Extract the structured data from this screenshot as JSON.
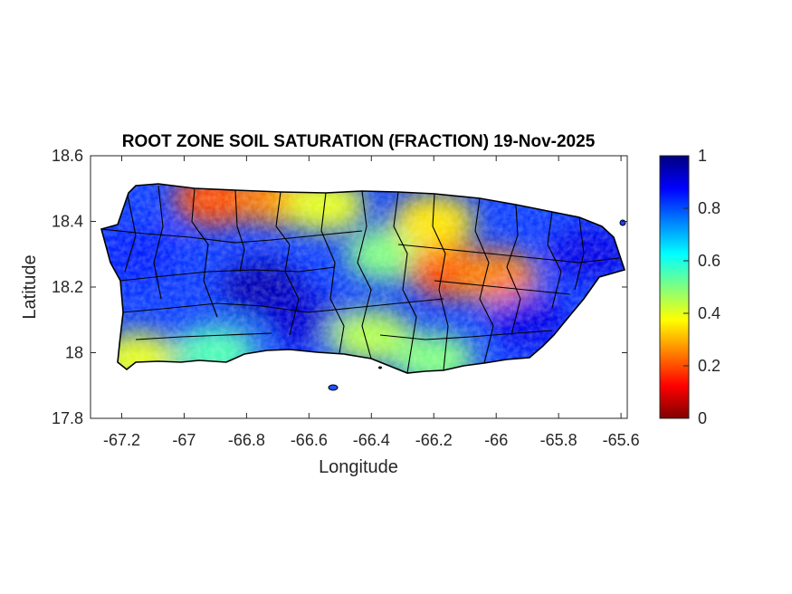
{
  "title": "ROOT ZONE SOIL SATURATION (FRACTION) 19-Nov-2025",
  "xlabel": "Longitude",
  "ylabel": "Latitude",
  "x_ticks": [
    "-67.2",
    "-67",
    "-66.8",
    "-66.6",
    "-66.4",
    "-66.2",
    "-66",
    "-65.8",
    "-65.6"
  ],
  "y_ticks": [
    "18.6",
    "18.4",
    "18.2",
    "18",
    "17.8"
  ],
  "colorbar": {
    "ticks": [
      "1",
      "0.8",
      "0.6",
      "0.4",
      "0.2",
      "0"
    ],
    "colormap": "jet",
    "colors": [
      "#800000",
      "#ff0000",
      "#ff8000",
      "#ffff00",
      "#80ff80",
      "#00ffff",
      "#0080ff",
      "#0000ff",
      "#000080"
    ]
  },
  "chart_data": {
    "type": "heatmap",
    "title": "ROOT ZONE SOIL SATURATION (FRACTION) 19-Nov-2025",
    "xlabel": "Longitude",
    "ylabel": "Latitude",
    "xlim": [
      -67.3,
      -65.58
    ],
    "ylim": [
      17.8,
      18.6
    ],
    "clim": [
      0,
      1
    ],
    "region": "Puerto Rico",
    "regions": [
      {
        "lon": -67.15,
        "lat": 18.3,
        "value": 0.85
      },
      {
        "lon": -66.75,
        "lat": 18.2,
        "value": 0.95
      },
      {
        "lon": -66.6,
        "lat": 18.1,
        "value": 0.92
      },
      {
        "lon": -66.9,
        "lat": 18.47,
        "value": 0.2
      },
      {
        "lon": -66.7,
        "lat": 18.47,
        "value": 0.25
      },
      {
        "lon": -66.55,
        "lat": 18.45,
        "value": 0.4
      },
      {
        "lon": -66.35,
        "lat": 18.3,
        "value": 0.5
      },
      {
        "lon": -66.15,
        "lat": 18.25,
        "value": 0.2
      },
      {
        "lon": -66.0,
        "lat": 18.23,
        "value": 0.25
      },
      {
        "lon": -66.2,
        "lat": 18.4,
        "value": 0.35
      },
      {
        "lon": -65.9,
        "lat": 18.1,
        "value": 0.9
      },
      {
        "lon": -65.7,
        "lat": 18.3,
        "value": 0.9
      },
      {
        "lon": -66.4,
        "lat": 18.05,
        "value": 0.45
      },
      {
        "lon": -66.2,
        "lat": 17.98,
        "value": 0.5
      },
      {
        "lon": -67.15,
        "lat": 17.98,
        "value": 0.4
      },
      {
        "lon": -66.9,
        "lat": 18.0,
        "value": 0.55
      }
    ]
  }
}
